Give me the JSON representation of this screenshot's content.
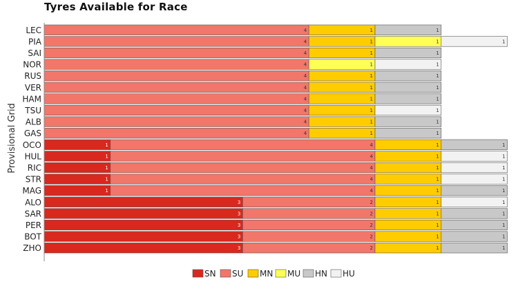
{
  "chart_data": {
    "type": "bar",
    "orientation": "horizontal",
    "stacked": true,
    "title": "Tyres Available for Race",
    "ylabel": "Provisional Grid",
    "xlim": [
      0,
      7
    ],
    "grid": false,
    "legend_position": "bottom",
    "categories": [
      "LEC",
      "PIA",
      "SAI",
      "NOR",
      "RUS",
      "VER",
      "HAM",
      "TSU",
      "ALB",
      "GAS",
      "OCO",
      "HUL",
      "RIC",
      "STR",
      "MAG",
      "ALO",
      "SAR",
      "PER",
      "BOT",
      "ZHO"
    ],
    "series": [
      {
        "name": "SN",
        "color": "#d9281e",
        "label_color": "#ffffff",
        "values": [
          0,
          0,
          0,
          0,
          0,
          0,
          0,
          0,
          0,
          0,
          1,
          1,
          1,
          1,
          1,
          3,
          3,
          3,
          3,
          3
        ]
      },
      {
        "name": "SU",
        "color": "#f2766a",
        "label_color": "#333333",
        "values": [
          4,
          4,
          4,
          4,
          4,
          4,
          4,
          4,
          4,
          4,
          4,
          4,
          4,
          4,
          4,
          2,
          2,
          2,
          2,
          2
        ]
      },
      {
        "name": "MN",
        "color": "#ffcc00",
        "label_color": "#333333",
        "values": [
          1,
          1,
          1,
          0,
          1,
          1,
          1,
          1,
          1,
          1,
          1,
          1,
          1,
          1,
          1,
          1,
          1,
          1,
          1,
          1
        ]
      },
      {
        "name": "MU",
        "color": "#ffff55",
        "label_color": "#333333",
        "values": [
          0,
          1,
          0,
          1,
          0,
          0,
          0,
          0,
          0,
          0,
          0,
          0,
          0,
          0,
          0,
          0,
          0,
          0,
          0,
          0
        ]
      },
      {
        "name": "HN",
        "color": "#c8c8c8",
        "label_color": "#333333",
        "values": [
          1,
          0,
          1,
          0,
          1,
          1,
          1,
          0,
          1,
          1,
          1,
          0,
          0,
          0,
          1,
          0,
          1,
          1,
          1,
          1
        ]
      },
      {
        "name": "HU",
        "color": "#f2f2f2",
        "label_color": "#333333",
        "values": [
          0,
          1,
          0,
          1,
          0,
          0,
          0,
          1,
          0,
          0,
          0,
          1,
          1,
          1,
          0,
          1,
          0,
          0,
          0,
          0
        ]
      }
    ]
  }
}
